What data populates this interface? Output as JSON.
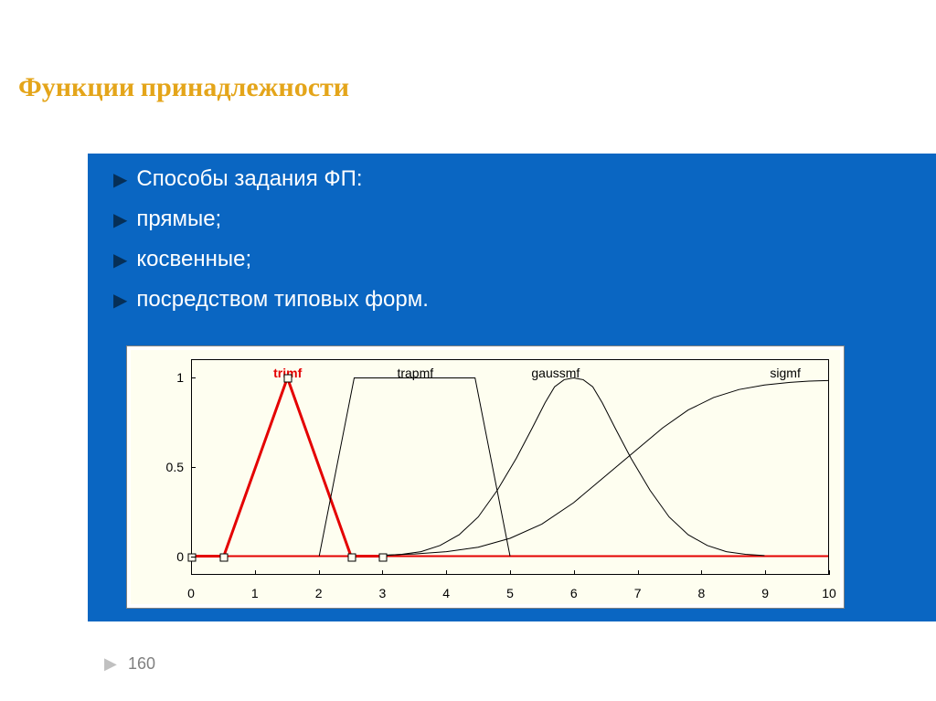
{
  "title": "Функции принадлежности",
  "bullets": [
    "Способы задания ФП:",
    "прямые;",
    "косвенные;",
    "посредством  типовых  форм."
  ],
  "page_number": "160",
  "chart": {
    "background": "#fefef0",
    "xlim": [
      0,
      10
    ],
    "ylim": [
      -0.1,
      1.1
    ],
    "yticks": [
      0,
      0.5,
      1
    ],
    "xticks": [
      0,
      1,
      2,
      3,
      4,
      5,
      6,
      7,
      8,
      9,
      10
    ],
    "tick_fontsize": 14,
    "label_fontsize": 14,
    "series": [
      {
        "name": "trimf",
        "label_x": 1.5,
        "color": "#e40000",
        "bold": true,
        "width": 3,
        "markers": true,
        "points": [
          [
            0,
            0
          ],
          [
            0.5,
            0
          ],
          [
            1.5,
            1
          ],
          [
            2.5,
            0
          ],
          [
            3,
            0
          ]
        ]
      },
      {
        "name": "trapmf",
        "label_x": 3.5,
        "color": "#000000",
        "bold": false,
        "width": 1,
        "markers": false,
        "points": [
          [
            2,
            0
          ],
          [
            2.55,
            1
          ],
          [
            4.45,
            1
          ],
          [
            5,
            0
          ]
        ]
      },
      {
        "name": "gaussmf",
        "label_x": 5.7,
        "color": "#000000",
        "bold": false,
        "width": 1,
        "markers": false,
        "points": [
          [
            3,
            0.003
          ],
          [
            3.3,
            0.01
          ],
          [
            3.6,
            0.025
          ],
          [
            3.9,
            0.06
          ],
          [
            4.2,
            0.12
          ],
          [
            4.5,
            0.22
          ],
          [
            4.8,
            0.37
          ],
          [
            5.1,
            0.55
          ],
          [
            5.35,
            0.72
          ],
          [
            5.55,
            0.86
          ],
          [
            5.7,
            0.95
          ],
          [
            5.85,
            0.99
          ],
          [
            6,
            1
          ],
          [
            6.15,
            0.99
          ],
          [
            6.3,
            0.95
          ],
          [
            6.45,
            0.86
          ],
          [
            6.65,
            0.72
          ],
          [
            6.9,
            0.55
          ],
          [
            7.2,
            0.37
          ],
          [
            7.5,
            0.22
          ],
          [
            7.8,
            0.12
          ],
          [
            8.1,
            0.06
          ],
          [
            8.4,
            0.025
          ],
          [
            8.7,
            0.01
          ],
          [
            9,
            0.003
          ]
        ]
      },
      {
        "name": "sigmf",
        "label_x": 9.3,
        "color": "#000000",
        "bold": false,
        "width": 1,
        "markers": false,
        "points": [
          [
            3,
            0.005
          ],
          [
            3.5,
            0.012
          ],
          [
            4,
            0.025
          ],
          [
            4.5,
            0.05
          ],
          [
            5,
            0.1
          ],
          [
            5.5,
            0.18
          ],
          [
            6,
            0.3
          ],
          [
            6.5,
            0.45
          ],
          [
            7,
            0.6
          ],
          [
            7.4,
            0.72
          ],
          [
            7.8,
            0.82
          ],
          [
            8.2,
            0.89
          ],
          [
            8.6,
            0.935
          ],
          [
            9,
            0.96
          ],
          [
            9.4,
            0.975
          ],
          [
            9.7,
            0.982
          ],
          [
            10,
            0.985
          ]
        ]
      }
    ]
  }
}
